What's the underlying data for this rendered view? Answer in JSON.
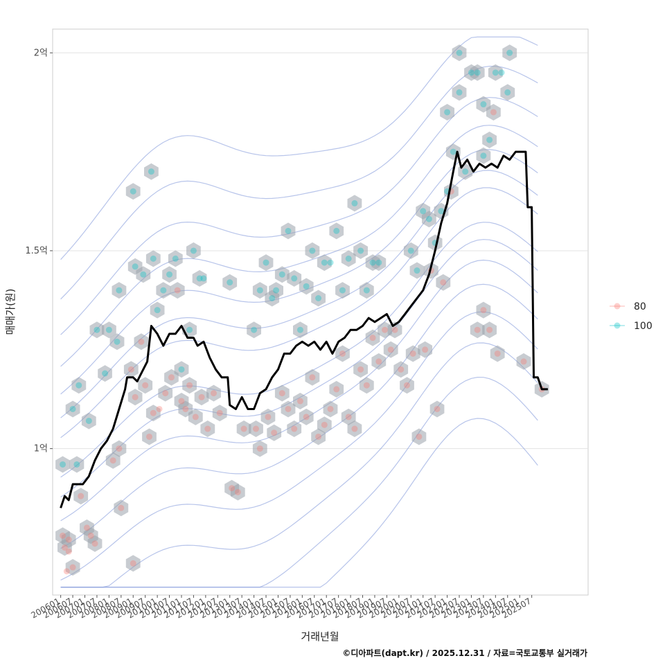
{
  "chart_data": {
    "type": "line",
    "xlabel": "거래년월",
    "ylabel": "매매가(원)",
    "caption": "©디아파트(dapt.kr) / 2025.12.31 / 자료=국토교통부 실거래가",
    "y_unit": "억",
    "ylim": [
      0.63,
      2.06
    ],
    "y_ticks": [
      {
        "value": 1.0,
        "label": "1억"
      },
      {
        "value": 1.5,
        "label": "1.5억"
      },
      {
        "value": 2.0,
        "label": "2억"
      }
    ],
    "x_start": "2006-01",
    "x_end": "2025-12",
    "xlim": [
      "2005-09",
      "2027-11"
    ],
    "x_ticks": [
      "200601",
      "200607",
      "200701",
      "200707",
      "200801",
      "200807",
      "200901",
      "200907",
      "201001",
      "201007",
      "201101",
      "201107",
      "201201",
      "201207",
      "201301",
      "201307",
      "201401",
      "201407",
      "201501",
      "201507",
      "201601",
      "201607",
      "201701",
      "201707",
      "201801",
      "201807",
      "201901",
      "201907",
      "202001",
      "202007",
      "202101",
      "202107",
      "202201",
      "202207",
      "202301",
      "202307",
      "202401",
      "202407",
      "202501",
      "202507"
    ],
    "legend": {
      "title": "",
      "position": "right",
      "entries": [
        {
          "label": "80",
          "color": "#F8766D"
        },
        {
          "label": "100",
          "color": "#00BFC4"
        }
      ]
    },
    "colors": {
      "line": "#000000",
      "hex": "#9aa3ab",
      "contour": "#7b93d9"
    },
    "series": [
      {
        "name": "moving average",
        "points": [
          [
            "2006-01",
            0.85
          ],
          [
            "2006-03",
            0.88
          ],
          [
            "2006-05",
            0.87
          ],
          [
            "2006-07",
            0.91
          ],
          [
            "2006-12",
            0.91
          ],
          [
            "2007-03",
            0.93
          ],
          [
            "2007-06",
            0.97
          ],
          [
            "2007-09",
            1.0
          ],
          [
            "2007-12",
            1.02
          ],
          [
            "2008-03",
            1.05
          ],
          [
            "2008-06",
            1.1
          ],
          [
            "2008-09",
            1.15
          ],
          [
            "2008-10",
            1.18
          ],
          [
            "2009-01",
            1.18
          ],
          [
            "2009-03",
            1.17
          ],
          [
            "2009-06",
            1.2
          ],
          [
            "2009-08",
            1.22
          ],
          [
            "2009-10",
            1.31
          ],
          [
            "2010-01",
            1.29
          ],
          [
            "2010-04",
            1.26
          ],
          [
            "2010-07",
            1.29
          ],
          [
            "2010-10",
            1.29
          ],
          [
            "2011-01",
            1.31
          ],
          [
            "2011-04",
            1.28
          ],
          [
            "2011-07",
            1.28
          ],
          [
            "2011-09",
            1.26
          ],
          [
            "2011-12",
            1.27
          ],
          [
            "2012-03",
            1.23
          ],
          [
            "2012-06",
            1.2
          ],
          [
            "2012-09",
            1.18
          ],
          [
            "2012-12",
            1.18
          ],
          [
            "2013-01",
            1.11
          ],
          [
            "2013-04",
            1.1
          ],
          [
            "2013-07",
            1.13
          ],
          [
            "2013-10",
            1.1
          ],
          [
            "2014-01",
            1.1
          ],
          [
            "2014-04",
            1.14
          ],
          [
            "2014-07",
            1.15
          ],
          [
            "2014-10",
            1.18
          ],
          [
            "2015-01",
            1.2
          ],
          [
            "2015-04",
            1.24
          ],
          [
            "2015-07",
            1.24
          ],
          [
            "2015-10",
            1.26
          ],
          [
            "2016-01",
            1.27
          ],
          [
            "2016-04",
            1.26
          ],
          [
            "2016-07",
            1.27
          ],
          [
            "2016-10",
            1.25
          ],
          [
            "2017-01",
            1.27
          ],
          [
            "2017-04",
            1.24
          ],
          [
            "2017-07",
            1.27
          ],
          [
            "2017-10",
            1.28
          ],
          [
            "2018-01",
            1.3
          ],
          [
            "2018-04",
            1.3
          ],
          [
            "2018-07",
            1.31
          ],
          [
            "2018-10",
            1.33
          ],
          [
            "2019-01",
            1.32
          ],
          [
            "2019-04",
            1.33
          ],
          [
            "2019-07",
            1.34
          ],
          [
            "2019-10",
            1.31
          ],
          [
            "2020-01",
            1.32
          ],
          [
            "2020-04",
            1.34
          ],
          [
            "2020-07",
            1.36
          ],
          [
            "2020-10",
            1.38
          ],
          [
            "2021-01",
            1.4
          ],
          [
            "2021-04",
            1.44
          ],
          [
            "2021-07",
            1.5
          ],
          [
            "2021-10",
            1.57
          ],
          [
            "2022-01",
            1.62
          ],
          [
            "2022-04",
            1.7
          ],
          [
            "2022-06",
            1.75
          ],
          [
            "2022-08",
            1.71
          ],
          [
            "2022-11",
            1.73
          ],
          [
            "2023-02",
            1.7
          ],
          [
            "2023-05",
            1.72
          ],
          [
            "2023-08",
            1.71
          ],
          [
            "2023-11",
            1.72
          ],
          [
            "2024-02",
            1.71
          ],
          [
            "2024-05",
            1.74
          ],
          [
            "2024-08",
            1.73
          ],
          [
            "2024-11",
            1.75
          ],
          [
            "2025-01",
            1.75
          ],
          [
            "2025-04",
            1.75
          ],
          [
            "2025-05",
            1.61
          ],
          [
            "2025-07",
            1.61
          ],
          [
            "2025-08",
            1.18
          ],
          [
            "2025-10",
            1.18
          ],
          [
            "2025-12",
            1.15
          ],
          [
            "2026-03",
            1.15
          ]
        ]
      },
      {
        "name": "80",
        "type": "scatter",
        "points": [
          [
            "2006-02",
            0.78
          ],
          [
            "2006-03",
            0.75
          ],
          [
            "2006-05",
            0.74
          ],
          [
            "2006-07",
            0.7
          ],
          [
            "2006-04",
            0.69
          ],
          [
            "2006-11",
            0.88
          ],
          [
            "2007-02",
            0.8
          ],
          [
            "2007-04",
            0.78
          ],
          [
            "2007-06",
            0.76
          ],
          [
            "2008-03",
            0.97
          ],
          [
            "2008-06",
            1.0
          ],
          [
            "2008-07",
            0.85
          ],
          [
            "2009-01",
            0.71
          ],
          [
            "2009-02",
            1.13
          ],
          [
            "2009-05",
            1.27
          ],
          [
            "2009-07",
            1.16
          ],
          [
            "2009-09",
            1.03
          ],
          [
            "2009-11",
            1.09
          ],
          [
            "2010-02",
            1.1
          ],
          [
            "2010-05",
            1.14
          ],
          [
            "2010-08",
            1.18
          ],
          [
            "2011-01",
            1.12
          ],
          [
            "2011-03",
            1.1
          ],
          [
            "2011-05",
            1.16
          ],
          [
            "2011-08",
            1.08
          ],
          [
            "2011-11",
            1.13
          ],
          [
            "2012-02",
            1.05
          ],
          [
            "2012-05",
            1.14
          ],
          [
            "2012-08",
            1.09
          ],
          [
            "2013-02",
            0.9
          ],
          [
            "2013-05",
            0.89
          ],
          [
            "2013-08",
            1.05
          ],
          [
            "2014-02",
            1.05
          ],
          [
            "2014-04",
            1.0
          ],
          [
            "2014-08",
            1.08
          ],
          [
            "2014-11",
            1.04
          ],
          [
            "2015-03",
            1.14
          ],
          [
            "2015-06",
            1.1
          ],
          [
            "2015-09",
            1.05
          ],
          [
            "2015-12",
            1.12
          ],
          [
            "2016-03",
            1.08
          ],
          [
            "2016-06",
            1.18
          ],
          [
            "2016-09",
            1.03
          ],
          [
            "2016-12",
            1.06
          ],
          [
            "2017-03",
            1.1
          ],
          [
            "2017-06",
            1.15
          ],
          [
            "2017-09",
            1.24
          ],
          [
            "2017-12",
            1.08
          ],
          [
            "2018-03",
            1.05
          ],
          [
            "2018-06",
            1.2
          ],
          [
            "2018-09",
            1.16
          ],
          [
            "2018-12",
            1.28
          ],
          [
            "2019-03",
            1.22
          ],
          [
            "2019-06",
            1.3
          ],
          [
            "2019-09",
            1.25
          ],
          [
            "2020-02",
            1.2
          ],
          [
            "2020-05",
            1.16
          ],
          [
            "2020-08",
            1.24
          ],
          [
            "2020-11",
            1.03
          ],
          [
            "2021-02",
            1.25
          ],
          [
            "2021-05",
            1.45
          ],
          [
            "2021-08",
            1.1
          ],
          [
            "2021-11",
            1.42
          ],
          [
            "2022-03",
            1.65
          ],
          [
            "2023-04",
            1.3
          ],
          [
            "2023-07",
            1.35
          ],
          [
            "2023-10",
            1.3
          ],
          [
            "2023-12",
            1.85
          ],
          [
            "2024-02",
            1.24
          ],
          [
            "2025-03",
            1.22
          ],
          [
            "2025-12",
            1.15
          ],
          [
            "2006-05",
            0.77
          ],
          [
            "2008-12",
            1.2
          ],
          [
            "2010-11",
            1.4
          ],
          [
            "2019-11",
            1.3
          ]
        ]
      },
      {
        "name": "100",
        "type": "scatter",
        "points": [
          [
            "2006-02",
            0.96
          ],
          [
            "2006-07",
            1.1
          ],
          [
            "2006-09",
            0.96
          ],
          [
            "2006-10",
            1.16
          ],
          [
            "2007-03",
            1.07
          ],
          [
            "2007-07",
            1.3
          ],
          [
            "2007-11",
            1.19
          ],
          [
            "2008-01",
            1.3
          ],
          [
            "2008-05",
            1.27
          ],
          [
            "2008-06",
            1.4
          ],
          [
            "2009-01",
            1.65
          ],
          [
            "2009-02",
            1.46
          ],
          [
            "2009-06",
            1.44
          ],
          [
            "2009-10",
            1.7
          ],
          [
            "2009-11",
            1.48
          ],
          [
            "2010-01",
            1.35
          ],
          [
            "2010-04",
            1.4
          ],
          [
            "2010-07",
            1.44
          ],
          [
            "2010-10",
            1.48
          ],
          [
            "2011-01",
            1.2
          ],
          [
            "2011-05",
            1.3
          ],
          [
            "2011-07",
            1.5
          ],
          [
            "2011-10",
            1.43
          ],
          [
            "2011-12",
            1.43
          ],
          [
            "2013-01",
            1.42
          ],
          [
            "2014-01",
            1.3
          ],
          [
            "2014-04",
            1.4
          ],
          [
            "2014-07",
            1.47
          ],
          [
            "2014-10",
            1.38
          ],
          [
            "2014-12",
            1.4
          ],
          [
            "2015-03",
            1.44
          ],
          [
            "2015-06",
            1.55
          ],
          [
            "2015-09",
            1.43
          ],
          [
            "2015-12",
            1.3
          ],
          [
            "2016-03",
            1.41
          ],
          [
            "2016-06",
            1.5
          ],
          [
            "2016-09",
            1.38
          ],
          [
            "2016-12",
            1.47
          ],
          [
            "2017-03",
            1.47
          ],
          [
            "2017-06",
            1.55
          ],
          [
            "2017-09",
            1.4
          ],
          [
            "2017-12",
            1.48
          ],
          [
            "2018-03",
            1.62
          ],
          [
            "2018-06",
            1.5
          ],
          [
            "2018-09",
            1.4
          ],
          [
            "2018-12",
            1.47
          ],
          [
            "2019-03",
            1.47
          ],
          [
            "2020-07",
            1.5
          ],
          [
            "2020-10",
            1.45
          ],
          [
            "2021-01",
            1.6
          ],
          [
            "2021-04",
            1.58
          ],
          [
            "2021-07",
            1.52
          ],
          [
            "2021-10",
            1.6
          ],
          [
            "2022-01",
            1.65
          ],
          [
            "2022-04",
            1.75
          ],
          [
            "2022-07",
            1.9
          ],
          [
            "2022-10",
            1.7
          ],
          [
            "2023-01",
            1.95
          ],
          [
            "2023-04",
            1.95
          ],
          [
            "2023-07",
            1.87
          ],
          [
            "2023-10",
            1.78
          ],
          [
            "2024-01",
            1.95
          ],
          [
            "2024-04",
            1.95
          ],
          [
            "2024-07",
            1.9
          ],
          [
            "2024-08",
            2.0
          ],
          [
            "2022-01",
            1.85
          ],
          [
            "2022-07",
            2.0
          ],
          [
            "2023-07",
            1.74
          ]
        ]
      }
    ]
  }
}
